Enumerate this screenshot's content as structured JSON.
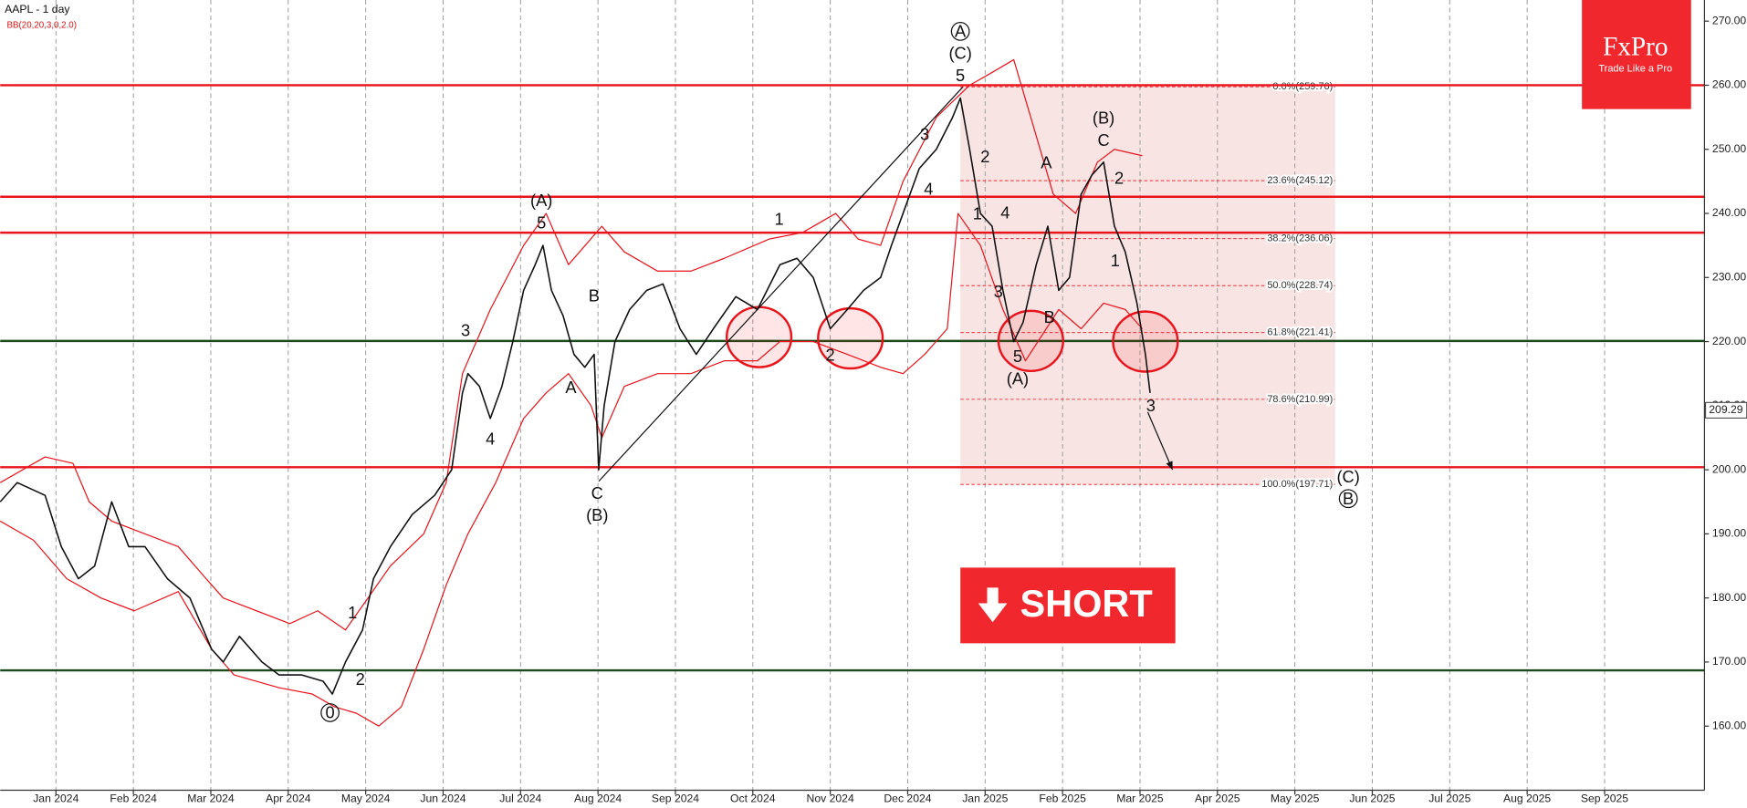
{
  "chart_data": {
    "type": "line",
    "title": "AAPL - 1 day",
    "subtitle": "BB(20,20,3,0,2.0)",
    "xlim": [
      -0.72,
      21.29
    ],
    "ylim": [
      150,
      273.3
    ],
    "grid": "x",
    "xticks": [
      {
        "value": 0,
        "label": "Jan 2024"
      },
      {
        "value": 1,
        "label": "Feb 2024"
      },
      {
        "value": 2,
        "label": "Mar 2024"
      },
      {
        "value": 3,
        "label": "Apr 2024"
      },
      {
        "value": 4,
        "label": "May 2024"
      },
      {
        "value": 5,
        "label": "Jun 2024"
      },
      {
        "value": 6,
        "label": "Jul 2024"
      },
      {
        "value": 7,
        "label": "Aug 2024"
      },
      {
        "value": 8,
        "label": "Sep 2024"
      },
      {
        "value": 9,
        "label": "Oct 2024"
      },
      {
        "value": 10,
        "label": "Nov 2024"
      },
      {
        "value": 11,
        "label": "Dec 2024"
      },
      {
        "value": 12,
        "label": "Jan 2025"
      },
      {
        "value": 13,
        "label": "Feb 2025"
      },
      {
        "value": 14,
        "label": "Mar 2025"
      },
      {
        "value": 15,
        "label": "Apr 2025"
      },
      {
        "value": 16,
        "label": "May 2025"
      },
      {
        "value": 17,
        "label": "Jun 2025"
      },
      {
        "value": 18,
        "label": "Jul 2025"
      },
      {
        "value": 19,
        "label": "Aug 2025"
      },
      {
        "value": 20,
        "label": "Sep 2025"
      }
    ],
    "yticks": [
      {
        "value": 160,
        "label": "160.00"
      },
      {
        "value": 170,
        "label": "170.00"
      },
      {
        "value": 180,
        "label": "180.00"
      },
      {
        "value": 190,
        "label": "190.00"
      },
      {
        "value": 200,
        "label": "200.00"
      },
      {
        "value": 210,
        "label": "210.00"
      },
      {
        "value": 220,
        "label": "220.00"
      },
      {
        "value": 230,
        "label": "230.00"
      },
      {
        "value": 240,
        "label": "240.00"
      },
      {
        "value": 250,
        "label": "250.00"
      },
      {
        "value": 260,
        "label": "260.00"
      },
      {
        "value": 270,
        "label": "270.00"
      }
    ],
    "price": {
      "color": "#111111",
      "x": [
        -0.72,
        -0.5,
        -0.14,
        0.07,
        0.29,
        0.5,
        0.72,
        0.94,
        1.15,
        1.44,
        1.73,
        2.01,
        2.16,
        2.37,
        2.66,
        2.88,
        3.17,
        3.45,
        3.57,
        3.74,
        3.96,
        4.1,
        4.32,
        4.6,
        4.89,
        5.11,
        5.25,
        5.32,
        5.47,
        5.61,
        5.76,
        5.9,
        6.04,
        6.19,
        6.29,
        6.4,
        6.55,
        6.69,
        6.83,
        6.95,
        7.01,
        7.08,
        7.22,
        7.41,
        7.63,
        7.84,
        8.06,
        8.27,
        8.49,
        8.78,
        9.06,
        9.35,
        9.57,
        9.78,
        10.0,
        10.22,
        10.43,
        10.65,
        10.79,
        10.94,
        11.15,
        11.37,
        11.58,
        11.68,
        11.8,
        11.94,
        12.09,
        12.23,
        12.37,
        12.49,
        12.66,
        12.81,
        12.95,
        13.09,
        13.24,
        13.38,
        13.53,
        13.67,
        13.81,
        13.96,
        14.07,
        14.13
      ],
      "values": [
        195,
        198,
        196,
        188,
        183,
        185,
        195,
        188,
        188,
        183,
        180,
        172,
        170,
        174,
        170,
        168,
        168,
        167,
        165,
        170,
        175,
        183,
        188,
        193,
        196,
        200,
        212,
        215,
        213,
        208,
        213,
        220,
        228,
        232,
        235,
        228,
        224,
        218,
        216,
        218,
        200,
        210,
        220,
        225,
        228,
        229,
        222,
        218,
        222,
        227,
        225,
        232,
        233,
        230,
        222,
        225,
        228,
        230,
        235,
        240,
        247,
        250,
        255,
        258,
        250,
        240,
        238,
        228,
        220,
        223,
        232,
        238,
        228,
        230,
        243,
        246,
        248,
        238,
        234,
        226,
        218,
        212
      ]
    },
    "bb_upper": {
      "color": "#e8141c",
      "x": [
        -0.72,
        -0.14,
        0.22,
        0.43,
        0.72,
        1.15,
        1.58,
        1.94,
        2.16,
        2.59,
        3.02,
        3.38,
        3.74,
        4.03,
        4.32,
        4.75,
        5.04,
        5.25,
        5.61,
        6.04,
        6.33,
        6.62,
        7.05,
        7.34,
        7.77,
        8.2,
        8.63,
        9.21,
        9.64,
        10.07,
        10.36,
        10.65,
        10.94,
        11.37,
        11.8,
        12.09,
        12.37,
        12.59,
        12.88,
        13.17,
        13.45,
        13.67,
        14.03
      ],
      "values": [
        198,
        202,
        201,
        195,
        192,
        190,
        188,
        183,
        180,
        178,
        176,
        178,
        175,
        180,
        185,
        190,
        198,
        215,
        225,
        235,
        240,
        232,
        238,
        234,
        231,
        231,
        233,
        236,
        237,
        240,
        236,
        235,
        245,
        255,
        260,
        262,
        264,
        255,
        243,
        240,
        248,
        250,
        249
      ]
    },
    "bb_lower": {
      "color": "#e8141c",
      "x": [
        -0.72,
        -0.29,
        0.14,
        0.58,
        1.01,
        1.58,
        2.01,
        2.3,
        2.88,
        3.31,
        3.6,
        3.88,
        4.17,
        4.46,
        4.75,
        5.04,
        5.32,
        5.68,
        6.04,
        6.33,
        6.62,
        6.91,
        7.05,
        7.34,
        7.77,
        8.2,
        8.63,
        9.06,
        9.35,
        9.78,
        10.22,
        10.65,
        10.94,
        11.22,
        11.51,
        11.65,
        11.94,
        12.23,
        12.52,
        12.95,
        13.24,
        13.53,
        13.81,
        14.03
      ],
      "values": [
        192,
        189,
        183,
        180,
        178,
        181,
        172,
        168,
        166,
        165,
        163,
        162,
        160,
        163,
        172,
        182,
        190,
        198,
        208,
        212,
        215,
        210,
        205,
        213,
        215,
        215,
        217,
        217,
        220,
        220,
        218,
        216,
        215,
        218,
        222,
        240,
        235,
        225,
        217,
        225,
        222,
        226,
        225,
        222
      ]
    },
    "levels": [
      {
        "value": 260,
        "color": "#e8141c"
      },
      {
        "value": 242.6,
        "color": "#e8141c"
      },
      {
        "value": 237,
        "color": "#e8141c"
      },
      {
        "value": 200.4,
        "color": "#e8141c"
      },
      {
        "value": 220.1,
        "color": "#1d4a1d"
      },
      {
        "value": 168.7,
        "color": "#1d4a1d"
      }
    ],
    "fib_zone": {
      "x": [
        11.68,
        16.52
      ],
      "color": "#f2c4c4"
    },
    "fib_levels": [
      {
        "value": 259.76,
        "label": "0.0%(259.76)"
      },
      {
        "value": 245.12,
        "label": "23.6%(245.12)"
      },
      {
        "value": 236.06,
        "label": "38.2%(236.06)"
      },
      {
        "value": 228.74,
        "label": "50.0%(228.74)"
      },
      {
        "value": 221.41,
        "label": "61.8%(221.41)"
      },
      {
        "value": 210.99,
        "label": "78.6%(210.99)"
      },
      {
        "value": 197.71,
        "label": "100.0%(197.71)"
      }
    ],
    "last_price": 209.29,
    "highlights": [
      {
        "x": 9.08,
        "y": 220.7
      },
      {
        "x": 10.26,
        "y": 220.5
      },
      {
        "x": 12.59,
        "y": 220.1
      },
      {
        "x": 14.07,
        "y": 220.0
      }
    ],
    "drawings": [
      {
        "kind": "line",
        "x": [
          7.01,
          11.71
        ],
        "y": [
          198.2,
          259.7
        ]
      },
      {
        "kind": "arrow",
        "x": [
          14.1,
          14.42
        ],
        "y": [
          209.0,
          200.0
        ]
      }
    ],
    "annotations": [
      {
        "text": "A",
        "x": 11.68,
        "y": 268.4,
        "circled": true
      },
      {
        "text": "(C)",
        "x": 11.68,
        "y": 265.0
      },
      {
        "text": "5",
        "x": 11.68,
        "y": 261.5
      },
      {
        "text": "(B)",
        "x": 13.53,
        "y": 254.9
      },
      {
        "text": "C",
        "x": 13.53,
        "y": 251.4
      },
      {
        "text": "2",
        "x": 13.73,
        "y": 245.5
      },
      {
        "text": "1",
        "x": 13.68,
        "y": 232.6
      },
      {
        "text": "3",
        "x": 14.14,
        "y": 210.0
      },
      {
        "text": "(C)",
        "x": 16.69,
        "y": 198.9
      },
      {
        "text": "B",
        "x": 16.69,
        "y": 195.5,
        "circled": true
      },
      {
        "text": "(A)",
        "x": 6.27,
        "y": 242.0
      },
      {
        "text": "5",
        "x": 6.27,
        "y": 238.5
      },
      {
        "text": "3",
        "x": 5.29,
        "y": 221.7
      },
      {
        "text": "4",
        "x": 5.61,
        "y": 204.8
      },
      {
        "text": "A",
        "x": 6.65,
        "y": 212.8
      },
      {
        "text": "B",
        "x": 6.95,
        "y": 227.1
      },
      {
        "text": "C",
        "x": 6.99,
        "y": 196.3
      },
      {
        "text": "(B)",
        "x": 6.99,
        "y": 192.9
      },
      {
        "text": "1",
        "x": 3.83,
        "y": 177.7
      },
      {
        "text": "2",
        "x": 3.93,
        "y": 167.3
      },
      {
        "text": "0",
        "x": 3.54,
        "y": 162.1,
        "circled": true
      },
      {
        "text": "1",
        "x": 9.34,
        "y": 239.1
      },
      {
        "text": "2",
        "x": 10.0,
        "y": 217.9
      },
      {
        "text": "3",
        "x": 11.22,
        "y": 252.3
      },
      {
        "text": "4",
        "x": 11.27,
        "y": 243.8
      },
      {
        "text": "2",
        "x": 12.0,
        "y": 248.8
      },
      {
        "text": "1",
        "x": 11.9,
        "y": 239.9
      },
      {
        "text": "4",
        "x": 12.26,
        "y": 240.1
      },
      {
        "text": "3",
        "x": 12.17,
        "y": 227.8
      },
      {
        "text": "A",
        "x": 12.79,
        "y": 247.9
      },
      {
        "text": "5",
        "x": 12.42,
        "y": 217.7
      },
      {
        "text": "B",
        "x": 12.83,
        "y": 223.8
      },
      {
        "text": "(A)",
        "x": 12.42,
        "y": 214.2
      }
    ]
  },
  "logo": {
    "name": "FxPro",
    "tagline": "Trade Like a Pro"
  },
  "signal": "SHORT"
}
